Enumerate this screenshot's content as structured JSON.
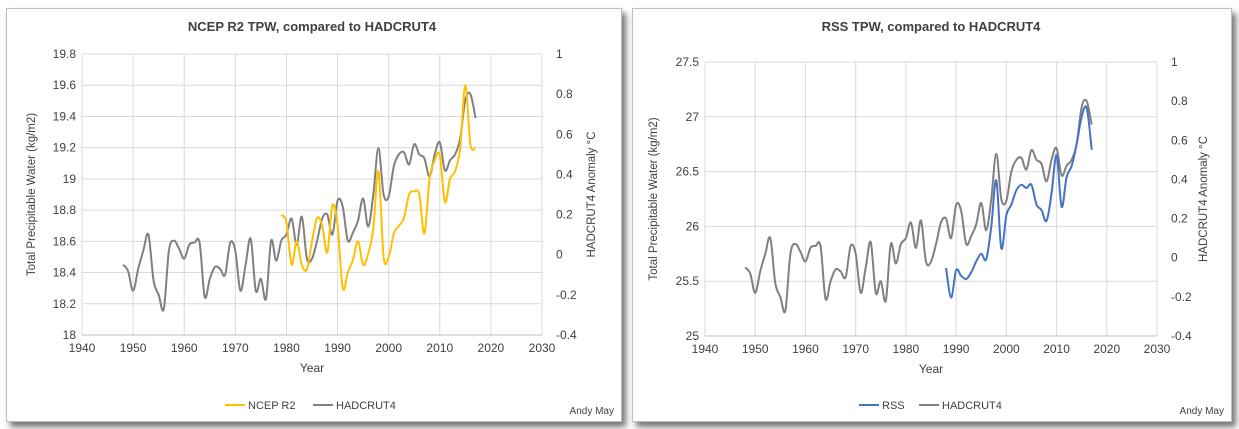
{
  "chart_data": [
    {
      "type": "line",
      "title": "NCEP R2 TPW, compared to HADCRUT4",
      "xlabel": "Year",
      "ylabel": "Total Precipitable Water (kg/m2)",
      "y2label": "HADCRUT4 Anomaly °C",
      "xlim": [
        1940,
        2030
      ],
      "ylim": [
        18,
        19.8
      ],
      "y2lim": [
        -0.4,
        1
      ],
      "x_ticks": [
        1940,
        1950,
        1960,
        1970,
        1980,
        1990,
        2000,
        2010,
        2020,
        2030
      ],
      "y_ticks": [
        18,
        18.2,
        18.4,
        18.6,
        18.8,
        19,
        19.2,
        19.4,
        19.6,
        19.8
      ],
      "y2_ticks": [
        -0.4,
        -0.2,
        0,
        0.2,
        0.4,
        0.6,
        0.8,
        1
      ],
      "grid": true,
      "legend_position": "bottom",
      "credit": "Andy May",
      "series": [
        {
          "name": "NCEP R2",
          "color": "#ffc000",
          "axis": "left",
          "x": [
            1979,
            1980,
            1981,
            1982,
            1983,
            1984,
            1985,
            1986,
            1987,
            1988,
            1989,
            1990,
            1991,
            1992,
            1993,
            1994,
            1995,
            1996,
            1997,
            1998,
            1999,
            2000,
            2001,
            2002,
            2003,
            2004,
            2005,
            2006,
            2007,
            2008,
            2009,
            2010,
            2011,
            2012,
            2013,
            2014,
            2015,
            2016,
            2017
          ],
          "y": [
            18.77,
            18.72,
            18.45,
            18.6,
            18.45,
            18.42,
            18.6,
            18.75,
            18.7,
            18.53,
            18.83,
            18.7,
            18.3,
            18.4,
            18.48,
            18.6,
            18.45,
            18.52,
            18.68,
            19.05,
            18.5,
            18.5,
            18.65,
            18.7,
            18.75,
            18.9,
            18.92,
            18.9,
            18.65,
            19.0,
            19.12,
            19.15,
            18.85,
            19.0,
            19.05,
            19.2,
            19.6,
            19.22,
            19.2
          ]
        },
        {
          "name": "HADCRUT4",
          "color": "#808080",
          "axis": "right",
          "x": [
            1948,
            1949,
            1950,
            1951,
            1952,
            1953,
            1954,
            1955,
            1956,
            1957,
            1958,
            1959,
            1960,
            1961,
            1962,
            1963,
            1964,
            1965,
            1966,
            1967,
            1968,
            1969,
            1970,
            1971,
            1972,
            1973,
            1974,
            1975,
            1976,
            1977,
            1978,
            1979,
            1980,
            1981,
            1982,
            1983,
            1984,
            1985,
            1986,
            1987,
            1988,
            1989,
            1990,
            1991,
            1992,
            1993,
            1994,
            1995,
            1996,
            1997,
            1998,
            1999,
            2000,
            2001,
            2002,
            2003,
            2004,
            2005,
            2006,
            2007,
            2008,
            2009,
            2010,
            2011,
            2012,
            2013,
            2014,
            2015,
            2016,
            2017
          ],
          "y": [
            -0.05,
            -0.08,
            -0.18,
            -0.07,
            0.02,
            0.1,
            -0.13,
            -0.2,
            -0.27,
            0.02,
            0.07,
            0.03,
            -0.02,
            0.05,
            0.06,
            0.06,
            -0.21,
            -0.12,
            -0.06,
            -0.07,
            -0.1,
            0.06,
            0.02,
            -0.18,
            -0.05,
            0.08,
            -0.18,
            -0.12,
            -0.22,
            0.07,
            -0.03,
            0.07,
            0.1,
            0.18,
            0.05,
            0.19,
            -0.02,
            -0.02,
            0.07,
            0.18,
            0.2,
            0.1,
            0.27,
            0.24,
            0.07,
            0.11,
            0.17,
            0.28,
            0.14,
            0.3,
            0.53,
            0.3,
            0.29,
            0.44,
            0.5,
            0.51,
            0.45,
            0.55,
            0.5,
            0.48,
            0.39,
            0.5,
            0.56,
            0.42,
            0.47,
            0.5,
            0.58,
            0.77,
            0.8,
            0.68
          ]
        }
      ]
    },
    {
      "type": "line",
      "title": "RSS TPW, compared to HADCRUT4",
      "xlabel": "Year",
      "ylabel": "Total Precipitable Water (kg/m2)",
      "y2label": "HADCRUT4 Anomaly °C",
      "xlim": [
        1940,
        2030
      ],
      "ylim": [
        25,
        27.5
      ],
      "y2lim": [
        -0.4,
        1
      ],
      "x_ticks": [
        1940,
        1950,
        1960,
        1970,
        1980,
        1990,
        2000,
        2010,
        2020,
        2030
      ],
      "y_ticks": [
        25,
        25.5,
        26,
        26.5,
        27,
        27.5
      ],
      "y2_ticks": [
        -0.4,
        -0.2,
        0,
        0.2,
        0.4,
        0.6,
        0.8,
        1
      ],
      "grid": true,
      "legend_position": "bottom",
      "credit": "Andy May",
      "series": [
        {
          "name": "RSS",
          "color": "#4472c4",
          "axis": "left",
          "x": [
            1988,
            1989,
            1990,
            1991,
            1992,
            1993,
            1994,
            1995,
            1996,
            1997,
            1998,
            1999,
            2000,
            2001,
            2002,
            2003,
            2004,
            2005,
            2006,
            2007,
            2008,
            2009,
            2010,
            2011,
            2012,
            2013,
            2014,
            2015,
            2016,
            2017
          ],
          "y": [
            25.62,
            25.35,
            25.6,
            25.55,
            25.52,
            25.58,
            25.68,
            25.75,
            25.7,
            26.0,
            26.42,
            25.8,
            26.1,
            26.2,
            26.33,
            26.38,
            26.35,
            26.38,
            26.2,
            26.15,
            26.05,
            26.3,
            26.65,
            26.18,
            26.45,
            26.55,
            26.75,
            27.0,
            27.08,
            26.7
          ]
        },
        {
          "name": "HADCRUT4",
          "color": "#808080",
          "axis": "right",
          "x": [
            1948,
            1949,
            1950,
            1951,
            1952,
            1953,
            1954,
            1955,
            1956,
            1957,
            1958,
            1959,
            1960,
            1961,
            1962,
            1963,
            1964,
            1965,
            1966,
            1967,
            1968,
            1969,
            1970,
            1971,
            1972,
            1973,
            1974,
            1975,
            1976,
            1977,
            1978,
            1979,
            1980,
            1981,
            1982,
            1983,
            1984,
            1985,
            1986,
            1987,
            1988,
            1989,
            1990,
            1991,
            1992,
            1993,
            1994,
            1995,
            1996,
            1997,
            1998,
            1999,
            2000,
            2001,
            2002,
            2003,
            2004,
            2005,
            2006,
            2007,
            2008,
            2009,
            2010,
            2011,
            2012,
            2013,
            2014,
            2015,
            2016,
            2017
          ],
          "y": [
            -0.05,
            -0.08,
            -0.18,
            -0.07,
            0.02,
            0.1,
            -0.13,
            -0.2,
            -0.27,
            0.02,
            0.07,
            0.03,
            -0.02,
            0.05,
            0.06,
            0.06,
            -0.21,
            -0.12,
            -0.06,
            -0.07,
            -0.1,
            0.06,
            0.02,
            -0.18,
            -0.05,
            0.08,
            -0.18,
            -0.12,
            -0.22,
            0.07,
            -0.03,
            0.07,
            0.1,
            0.18,
            0.05,
            0.19,
            -0.02,
            -0.02,
            0.07,
            0.18,
            0.2,
            0.1,
            0.27,
            0.24,
            0.07,
            0.11,
            0.17,
            0.28,
            0.14,
            0.3,
            0.53,
            0.3,
            0.29,
            0.44,
            0.5,
            0.51,
            0.45,
            0.55,
            0.5,
            0.48,
            0.39,
            0.5,
            0.56,
            0.42,
            0.47,
            0.5,
            0.58,
            0.77,
            0.8,
            0.68
          ]
        }
      ]
    }
  ]
}
